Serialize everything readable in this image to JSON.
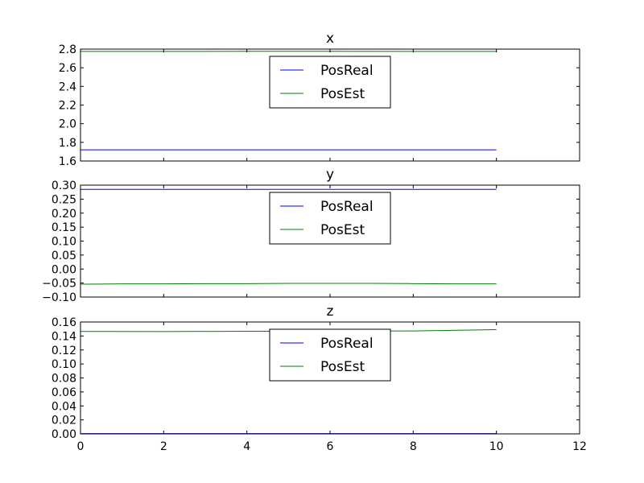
{
  "figure": {
    "background": "#ffffff"
  },
  "chart_data": [
    {
      "type": "line",
      "title": "x",
      "xlabel": "",
      "ylabel": "",
      "xlim": [
        0,
        12
      ],
      "ylim": [
        1.6,
        2.8
      ],
      "xticks": [
        0,
        2,
        4,
        6,
        8,
        10,
        12
      ],
      "yticks": [
        1.6,
        1.8,
        2.0,
        2.2,
        2.4,
        2.6,
        2.8
      ],
      "ytick_labels": [
        "1.6",
        "1.8",
        "2.0",
        "2.2",
        "2.4",
        "2.6",
        "2.8"
      ],
      "show_xtick_labels": false,
      "grid": false,
      "legend": "upper-center",
      "series": [
        {
          "name": "PosReal",
          "color": "#0000ff",
          "x": [
            0,
            10
          ],
          "y": [
            1.72,
            1.72
          ]
        },
        {
          "name": "PosEst",
          "color": "#008000",
          "x": [
            0,
            2,
            4,
            6,
            8,
            10
          ],
          "y": [
            2.775,
            2.775,
            2.776,
            2.776,
            2.775,
            2.775
          ]
        }
      ]
    },
    {
      "type": "line",
      "title": "y",
      "xlabel": "",
      "ylabel": "",
      "xlim": [
        0,
        12
      ],
      "ylim": [
        -0.1,
        0.3
      ],
      "xticks": [
        0,
        2,
        4,
        6,
        8,
        10,
        12
      ],
      "yticks": [
        -0.1,
        -0.05,
        0.0,
        0.05,
        0.1,
        0.15,
        0.2,
        0.25,
        0.3
      ],
      "ytick_labels": [
        "−0.10",
        "−0.05",
        "0.00",
        "0.05",
        "0.10",
        "0.15",
        "0.20",
        "0.25",
        "0.30"
      ],
      "show_xtick_labels": false,
      "grid": false,
      "legend": "upper-center",
      "series": [
        {
          "name": "PosReal",
          "color": "#0000ff",
          "x": [
            0,
            10
          ],
          "y": [
            0.285,
            0.285
          ]
        },
        {
          "name": "PosEst",
          "color": "#008000",
          "x": [
            0,
            1,
            2,
            3,
            4,
            5,
            6,
            7,
            8,
            9,
            10
          ],
          "y": [
            -0.054,
            -0.053,
            -0.053,
            -0.052,
            -0.052,
            -0.051,
            -0.051,
            -0.051,
            -0.052,
            -0.053,
            -0.053
          ]
        }
      ]
    },
    {
      "type": "line",
      "title": "z",
      "xlabel": "",
      "ylabel": "",
      "xlim": [
        0,
        12
      ],
      "ylim": [
        0.0,
        0.16
      ],
      "xticks": [
        0,
        2,
        4,
        6,
        8,
        10,
        12
      ],
      "yticks": [
        0.0,
        0.02,
        0.04,
        0.06,
        0.08,
        0.1,
        0.12,
        0.14,
        0.16
      ],
      "ytick_labels": [
        "0.00",
        "0.02",
        "0.04",
        "0.06",
        "0.08",
        "0.10",
        "0.12",
        "0.14",
        "0.16"
      ],
      "xtick_labels": [
        "0",
        "2",
        "4",
        "6",
        "8",
        "10",
        "12"
      ],
      "show_xtick_labels": true,
      "grid": false,
      "legend": "upper-center",
      "series": [
        {
          "name": "PosReal",
          "color": "#0000ff",
          "x": [
            0,
            10
          ],
          "y": [
            0.0005,
            0.0005
          ]
        },
        {
          "name": "PosEst",
          "color": "#008000",
          "x": [
            0,
            2,
            4,
            6,
            8,
            10
          ],
          "y": [
            0.1465,
            0.1463,
            0.1468,
            0.147,
            0.1472,
            0.149
          ]
        }
      ]
    }
  ]
}
